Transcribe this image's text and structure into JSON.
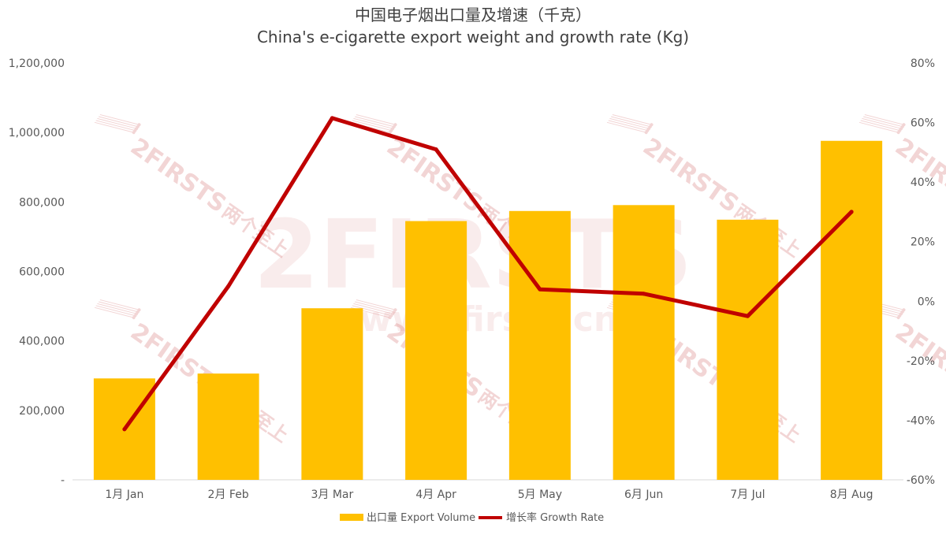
{
  "chart_data": {
    "type": "bar",
    "title": "中国电子烟出口量及增速（千克）",
    "subtitle": "China's e-cigarette export weight and growth rate (Kg)",
    "categories": [
      "1月 Jan",
      "2月 Feb",
      "3月 Mar",
      "4月 Apr",
      "5月 May",
      "6月 Jun",
      "7月 Jul",
      "8月 Aug"
    ],
    "series": [
      {
        "name": "出口量 Export Volume",
        "type": "bar",
        "axis": "left",
        "color": "#FFC000",
        "values": [
          292000,
          306000,
          494000,
          745000,
          774000,
          791000,
          749000,
          976000
        ]
      },
      {
        "name": "增长率 Growth Rate",
        "type": "line",
        "axis": "right",
        "color": "#C00000",
        "values": [
          -43,
          5,
          61.5,
          51,
          4,
          2.5,
          -5,
          30
        ]
      }
    ],
    "ylim": [
      0,
      1200000
    ],
    "y_ticks": [
      0,
      200000,
      400000,
      600000,
      800000,
      1000000,
      1200000
    ],
    "y_tick_labels": [
      "-",
      "200,000",
      "400,000",
      "600,000",
      "800,000",
      "1,000,000",
      "1,200,000"
    ],
    "y2lim": [
      -60,
      80
    ],
    "y2_ticks": [
      -60,
      -40,
      -20,
      0,
      20,
      40,
      60,
      80
    ],
    "y2_tick_labels": [
      "-60%",
      "-40%",
      "-20%",
      "0%",
      "20%",
      "40%",
      "60%",
      "80%"
    ],
    "legend_position": "bottom",
    "grid": false
  },
  "watermark": {
    "brand": "2FIRSTS",
    "brand_cn": "两个至上",
    "url": "www.2firsts.cn"
  }
}
